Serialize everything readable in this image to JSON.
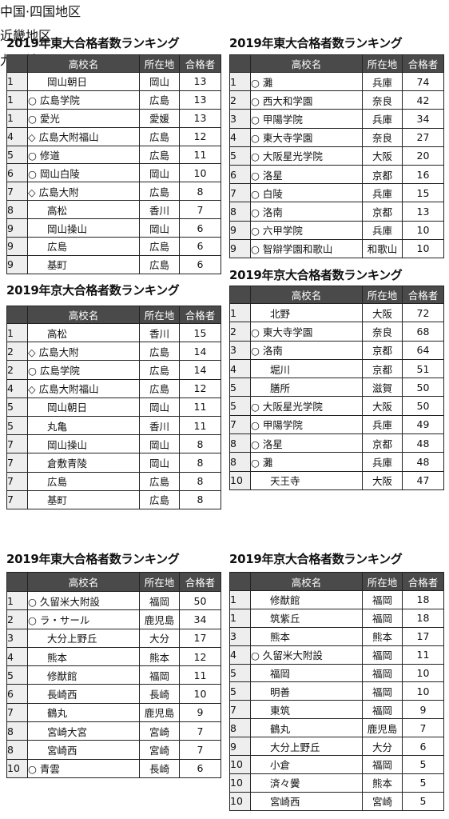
{
  "sections": [
    {
      "title": "中国·四国地区",
      "tables": [
        {
          "title": "2019年東大合格者数ランキング",
          "header": [
            "高校名",
            "所在地",
            "合格者"
          ],
          "rows": [
            [
              1,
              "岡山朝日",
              "岡山",
              13
            ],
            [
              1,
              "○ 広島学院",
              "広島",
              13
            ],
            [
              1,
              "○ 愛光",
              "愛媛",
              13
            ],
            [
              4,
              "◇ 広島大附福山",
              "広島",
              12
            ],
            [
              5,
              "○ 修道",
              "広島",
              11
            ],
            [
              6,
              "○ 岡山白陵",
              "岡山",
              10
            ],
            [
              7,
              "◇ 広島大附",
              "広島",
              8
            ],
            [
              8,
              "高松",
              "香川",
              7
            ],
            [
              9,
              "岡山操山",
              "岡山",
              6
            ],
            [
              9,
              "広島",
              "広島",
              6
            ],
            [
              9,
              "基町",
              "広島",
              6
            ]
          ]
        },
        {
          "title": "2019年京大合格者数ランキング",
          "header": [
            "高校名",
            "所在地",
            "合格者"
          ],
          "rows": [
            [
              1,
              "高松",
              "香川",
              15
            ],
            [
              2,
              "◇ 広島大附",
              "広島",
              14
            ],
            [
              2,
              "○ 広島学院",
              "広島",
              14
            ],
            [
              4,
              "◇ 広島大附福山",
              "広島",
              12
            ],
            [
              5,
              "岡山朝日",
              "岡山",
              11
            ],
            [
              5,
              "丸亀",
              "香川",
              11
            ],
            [
              7,
              "岡山操山",
              "岡山",
              8
            ],
            [
              7,
              "倉敷青陵",
              "岡山",
              8
            ],
            [
              7,
              "広島",
              "広島",
              8
            ],
            [
              7,
              "基町",
              "広島",
              8
            ]
          ]
        }
      ]
    },
    {
      "title": "近畿地区",
      "tables": [
        {
          "title": "2019年東大合格者数ランキング",
          "header": [
            "高校名",
            "所在地",
            "合格者"
          ],
          "rows": [
            [
              1,
              "○ 灘",
              "兵庫",
              74
            ],
            [
              2,
              "○ 西大和学園",
              "奈良",
              42
            ],
            [
              3,
              "○ 甲陽学院",
              "兵庫",
              34
            ],
            [
              4,
              "○ 東大寺学園",
              "奈良",
              27
            ],
            [
              5,
              "○ 大阪星光学院",
              "大阪",
              20
            ],
            [
              6,
              "○ 洛星",
              "京都",
              16
            ],
            [
              7,
              "○ 白陵",
              "兵庫",
              15
            ],
            [
              8,
              "○ 洛南",
              "京都",
              13
            ],
            [
              9,
              "○ 六甲学院",
              "兵庫",
              10
            ],
            [
              9,
              "○ 智辯学園和歌山",
              "和歌山",
              10
            ]
          ]
        },
        {
          "title": "2019年京大合格者数ランキング",
          "header": [
            "高校名",
            "所在地",
            "合格者"
          ],
          "rows": [
            [
              1,
              "北野",
              "大阪",
              72
            ],
            [
              2,
              "○ 東大寺学園",
              "奈良",
              68
            ],
            [
              3,
              "○ 洛南",
              "京都",
              64
            ],
            [
              4,
              "堀川",
              "京都",
              51
            ],
            [
              5,
              "膳所",
              "滋賀",
              50
            ],
            [
              5,
              "○ 大阪星光学院",
              "大阪",
              50
            ],
            [
              7,
              "○ 甲陽学院",
              "兵庫",
              49
            ],
            [
              8,
              "○ 洛星",
              "京都",
              48
            ],
            [
              8,
              "○ 灘",
              "兵庫",
              48
            ],
            [
              10,
              "天王寺",
              "大阪",
              47
            ]
          ]
        }
      ]
    },
    {
      "title": "九州地区",
      "tables": [
        {
          "title": "2019年東大合格者数ランキング",
          "header": [
            "高校名",
            "所在地",
            "合格者"
          ],
          "rows": [
            [
              1,
              "○ 久留米大附設",
              "福岡",
              50
            ],
            [
              2,
              "○ ラ・サール",
              "鹿児島",
              34
            ],
            [
              3,
              "大分上野丘",
              "大分",
              17
            ],
            [
              4,
              "熊本",
              "熊本",
              12
            ],
            [
              5,
              "修猷館",
              "福岡",
              11
            ],
            [
              6,
              "長崎西",
              "長崎",
              10
            ],
            [
              7,
              "鶴丸",
              "鹿児島",
              9
            ],
            [
              8,
              "宮崎大宮",
              "宮崎",
              7
            ],
            [
              8,
              "宮崎西",
              "宮崎",
              7
            ],
            [
              10,
              "○ 青雲",
              "長崎",
              6
            ]
          ]
        },
        {
          "title": "2019年京大合格者数ランキング",
          "header": [
            "高校名",
            "所在地",
            "合格者"
          ],
          "rows": [
            [
              1,
              "修猷館",
              "福岡",
              18
            ],
            [
              1,
              "筑紫丘",
              "福岡",
              18
            ],
            [
              3,
              "熊本",
              "熊本",
              17
            ],
            [
              4,
              "○ 久留米大附設",
              "福岡",
              11
            ],
            [
              5,
              "福岡",
              "福岡",
              10
            ],
            [
              5,
              "明善",
              "福岡",
              10
            ],
            [
              7,
              "東筑",
              "福岡",
              9
            ],
            [
              8,
              "鶴丸",
              "鹿児島",
              7
            ],
            [
              9,
              "大分上野丘",
              "大分",
              6
            ],
            [
              10,
              "小倉",
              "福岡",
              5
            ],
            [
              10,
              "済々黌",
              "熊本",
              5
            ],
            [
              10,
              "宮崎西",
              "宮崎",
              5
            ]
          ]
        }
      ]
    }
  ]
}
